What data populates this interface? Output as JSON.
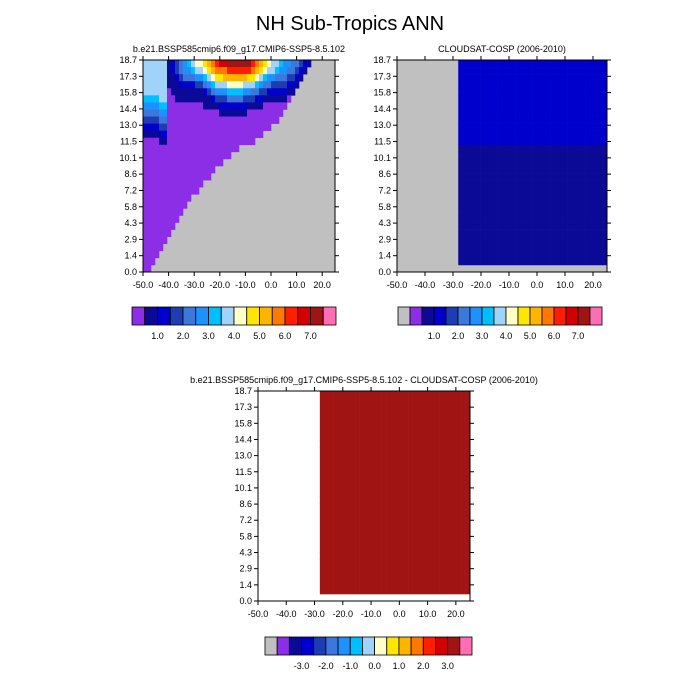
{
  "figure": {
    "title": "NH Sub-Tropics ANN"
  },
  "chart_data": [
    {
      "type": "heatmap",
      "title": "b.e21.BSSP585cmip6.f09_g17.CMIP6-SSP5-8.5.102",
      "xlabel": "",
      "ylabel": "",
      "x_ticks": [
        "-50.0",
        "-40.0",
        "-30.0",
        "-20.0",
        "-10.0",
        "0.0",
        "10.0",
        "20.0"
      ],
      "xlim": [
        -50,
        25
      ],
      "y_ticks": [
        "0.0",
        "1.4",
        "2.9",
        "4.3",
        "5.8",
        "7.2",
        "8.6",
        "10.1",
        "11.5",
        "13.0",
        "14.4",
        "15.8",
        "17.3",
        "18.7"
      ],
      "missing_color": "#c0c0c0",
      "colorbar": {
        "labels": [
          "1.0",
          "2.0",
          "3.0",
          "4.0",
          "5.0",
          "6.0",
          "7.0"
        ],
        "colors": [
          "#8c2ee6",
          "#0a0a96",
          "#0000cd",
          "#1e3cb4",
          "#3c78dc",
          "#1e90ff",
          "#00bfff",
          "#a0d2fa",
          "#ffffc8",
          "#ffe600",
          "#ffb400",
          "#ff7800",
          "#ff1e00",
          "#d20000",
          "#a01414",
          "#ff6eb4"
        ]
      },
      "grid": [
        "HHHHHHBCDEFGHIIJKLMNNOOOOOOMLKJIHHGFFEEDCB......",
        "HHHHHHBCDEFFGHHIJKLLLMMMMMMLKJIHHGFFEEDCB.......",
        "HHHHHHBBCDEEEFFGHIJJKKKKKKJJIHGFFEEEDDCB........",
        "HHHHHHBBBCCCCDDEFGHHHIIIIHHHGFEEDDDDCCB.........",
        "HHHHHHABBBBBBBBCDEFFFGGGGFFEEDDCCCCCBB..........",
        "GGGGHHAABBBBBBBBBCDDDEEEEDDDCCBBBBBBA...........",
        "FFFFGGAAAAAAAAABBBBCCCCCCCBBBBAAAAAA............",
        "EEEEFFAAAAAAAAAAAAABBBBBBBAAAAAAAAA.............",
        "DDDDEEAAAAAAAAAAAAAAAAAAAAAAAAAAAA..............",
        "CCCCDDAAAAAAAAAAAAAAAAAAAAAAAAAA................",
        "BBBBCCAAAAAAAAAAAAAAAAAAAAAAAA..................",
        "AAAABBAAAAAAAAAAAAAAAAAAAAAA....................",
        "AAAAAAAAAAAAAAAAAAAAAAAA........................",
        "AAAAAAAAAAAAAAAAAAAAAA..........................",
        "AAAAAAAAAAAAAAAAAAAA............................",
        "AAAAAAAAAAAAAAAAAA..............................",
        "AAAAAAAAAAAAAAAAA...............................",
        "AAAAAAAAAAAAAAA.................................",
        "AAAAAAAAAAAAAA..................................",
        "AAAAAAAAAAAA....................................",
        "AAAAAAAAAAA.....................................",
        "AAAAAAAAAA......................................",
        "AAAAAAAAA.......................................",
        "AAAAAAAA........................................",
        "AAAAAAA.........................................",
        "AAAAAA..........................................",
        "AAAAA...........................................",
        "AAAA............................................",
        "AAA.............................................",
        "AA.............................................."
      ]
    },
    {
      "type": "heatmap",
      "title": "CLOUDSAT-COSP (2006-2010)",
      "xlabel": "",
      "ylabel": "",
      "x_ticks": [
        "-50.0",
        "-40.0",
        "-30.0",
        "-20.0",
        "-10.0",
        "0.0",
        "10.0",
        "20.0"
      ],
      "xlim": [
        -50,
        25
      ],
      "y_ticks": [
        "0.0",
        "1.4",
        "2.9",
        "4.3",
        "5.8",
        "7.2",
        "8.6",
        "10.1",
        "11.5",
        "13.0",
        "14.4",
        "15.8",
        "17.3",
        "18.7"
      ],
      "missing_color": "#c0c0c0",
      "colorbar": {
        "labels": [
          "1.0",
          "2.0",
          "3.0",
          "4.0",
          "5.0",
          "6.0",
          "7.0"
        ],
        "colors": [
          "#c0c0c0",
          "#8c2ee6",
          "#0a0a96",
          "#0000cd",
          "#1e3cb4",
          "#3c78dc",
          "#1e90ff",
          "#00bfff",
          "#a0d2fa",
          "#ffffc8",
          "#ffe600",
          "#ffb400",
          "#ff7800",
          "#ff1e00",
          "#d20000",
          "#a01414",
          "#ff6eb4"
        ]
      },
      "grid": [
        "..............CCCCCCCCCCCCCCCCCCCCCCCCCCCCCCCCCC",
        "..............CCCCCCCCCCCCCCCCCCCCCCCCCCCCCCCCCC",
        "..............CCCCCCCCCCCCCCCCCCCCCCCCCCCCCCCCCC",
        "..............CCCCCCCCCCCCCCCCCCCCCCCCCCCCCCCCCC",
        "..............CCCCCCCCCCCCCCCCCCCCCCCCCCCCCCCCCC",
        "..............CCCCCCCCCCCCCCCCCCCCCCCCCCCCCCCCCC",
        "..............CCCCCCCCCCCCCCCCCCCCCCCCCCCCCCCCCC",
        "..............CCCCCCCCCCCCCCCCCCCCCCCCCCCCCCCCCC",
        "..............CCCCCCCCCCCCCCCCCCCCCCCCCCCCCCCCCC",
        "..............CCCCCCCCCCCCCCCCCCCCCCCCCCCCCCCCCC",
        "..............CCCCCCCCCCCCCCCCCCCCCCCCCCCCCCCCCC",
        "..............CCCCCCCCCCCCCCCCCCCCCCCCCCCCCCCCCC",
        "..............BBBBBBBBBBBBBBBBBBBBBBBBBBBBBBBBBB",
        "..............BBBBBBBBBBBBBBBBBBBBBBBBBBBBBBBBBB",
        "..............BBBBBBBBBBBBBBBBBBBBBBBBBBBBBBBBBB",
        "..............BBBBBBBBBBBBBBBBBBBBBBBBBBBBBBBBBB",
        "..............BBBBBBBBBBBBBBBBBBBBBBBBBBBBBBBBBB",
        "..............BBBBBBBBBBBBBBBBBBBBBBBBBBBBBBBBBB",
        "..............BBBBBBBBBBBBBBBBBBBBBBBBBBBBBBBBBB",
        "..............BBBBBBBBBBBBBBBBBBBBBBBBBBBBBBBBBB",
        "..............BBBBBBBBBBBBBBBBBBBBBBBBBBBBBBBBBB",
        "..............BBBBBBBBBBBBBBBBBBBBBBBBBBBBBBBBBB",
        "..............BBBBBBBBBBBBBBBBBBBBBBBBBBBBBBBBBB",
        "..............BBBBBBBBBBBBBBBBBBBBBBBBBBBBBBBBBB",
        "..............BBBBBBBBBBBBBBBBBBBBBBBBBBBBBBBBBB",
        "..............BBBBBBBBBBBBBBBBBBBBBBBBBBBBBBBBBB",
        "..............BBBBBBBBBBBBBBBBBBBBBBBBBBBBBBBBBB",
        "..............BBBBBBBBBBBBBBBBBBBBBBBBBBBBBBBBBB",
        "..............BBBBBBBBBBBBBBBBBBBBBBBBBBBBBBBBBB",
        ".............................................."
      ]
    },
    {
      "type": "heatmap",
      "title": "b.e21.BSSP585cmip6.f09_g17.CMIP6-SSP5-8.5.102 - CLOUDSAT-COSP (2006-2010)",
      "xlabel": "",
      "ylabel": "",
      "x_ticks": [
        "-50.0",
        "-40.0",
        "-30.0",
        "-20.0",
        "-10.0",
        "0.0",
        "10.0",
        "20.0"
      ],
      "xlim": [
        -50,
        25
      ],
      "y_ticks": [
        "0.0",
        "1.4",
        "2.9",
        "4.3",
        "5.8",
        "7.2",
        "8.6",
        "10.1",
        "11.5",
        "13.0",
        "14.4",
        "15.8",
        "17.3",
        "18.7"
      ],
      "missing_color": "#ffffff",
      "colorbar": {
        "labels": [
          "-3.0",
          "-2.0",
          "-1.0",
          "0.0",
          "1.0",
          "2.0",
          "3.0"
        ],
        "colors": [
          "#c0c0c0",
          "#8c2ee6",
          "#0a0a96",
          "#0000cd",
          "#1e3cb4",
          "#3c78dc",
          "#1e90ff",
          "#00bfff",
          "#a0d2fa",
          "#ffffc8",
          "#ffe600",
          "#ffb400",
          "#ff7800",
          "#ff1e00",
          "#d20000",
          "#a01414",
          "#ff6eb4"
        ]
      },
      "grid": [
        "..............OOOOOOOOOOOOOOOOOOOOOOOOOOOOOOOOOO",
        "..............OOOOOOOOOOOOOOOOOOOOOOOOOOOOOOOOOO",
        "..............OOOOOOOOOOOOOOOOOOOOOOOOOOOOOOOOOO",
        "..............OOOOOOOOOOOOOOOOOOOOOOOOOOOOOOOOOO",
        "..............OOOOOOOOOOOOOOOOOOOOOOOOOOOOOOOOOO",
        "..............OOOOOOOOOOOOOOOOOOOOOOOOOOOOOOOOOO",
        "..............OOOOOOOOOOOOOOOOOOOOOOOOOOOOOOOOOO",
        "..............OOOOOOOOOOOOOOOOOOOOOOOOOOOOOOOOOO",
        "..............OOOOOOOOOOOOOOOOOOOOOOOOOOOOOOOOOO",
        "..............OOOOOOOOOOOOOOOOOOOOOOOOOOOOOOOOOO",
        "..............OOOOOOOOOOOOOOOOOOOOOOOOOOOOOOOOOO",
        "..............OOOOOOOOOOOOOOOOOOOOOOOOOOOOOOOOOO",
        "..............OOOOOOOOOOOOOOOOOOOOOOOOOOOOOOOOOO",
        "..............OOOOOOOOOOOOOOOOOOOOOOOOOOOOOOOOOO",
        "..............OOOOOOOOOOOOOOOOOOOOOOOOOOOOOOOOOO",
        "..............OOOOOOOOOOOOOOOOOOOOOOOOOOOOOOOOOO",
        "..............OOOOOOOOOOOOOOOOOOOOOOOOOOOOOOOOOO",
        "..............OOOOOOOOOOOOOOOOOOOOOOOOOOOOOOOOOO",
        "..............OOOOOOOOOOOOOOOOOOOOOOOOOOOOOOOOOO",
        "..............OOOOOOOOOOOOOOOOOOOOOOOOOOOOOOOOOO",
        "..............OOOOOOOOOOOOOOOOOOOOOOOOOOOOOOOOOO",
        "..............OOOOOOOOOOOOOOOOOOOOOOOOOOOOOOOOOO",
        "..............OOOOOOOOOOOOOOOOOOOOOOOOOOOOOOOOOO",
        "..............OOOOOOOOOOOOOOOOOOOOOOOOOOOOOOOOOO",
        "..............OOOOOOOOOOOOOOOOOOOOOOOOOOOOOOOOOO",
        "..............OOOOOOOOOOOOOOOOOOOOOOOOOOOOOOOOOO",
        "..............OOOOOOOOOOOOOOOOOOOOOOOOOOOOOOOOOO",
        "..............OOOOOOOOOOOOOOOOOOOOOOOOOOOOOOOOOO",
        "..............OOOOOOOOOOOOOOOOOOOOOOOOOOOOOOOOOO",
        ".............................................."
      ]
    }
  ]
}
